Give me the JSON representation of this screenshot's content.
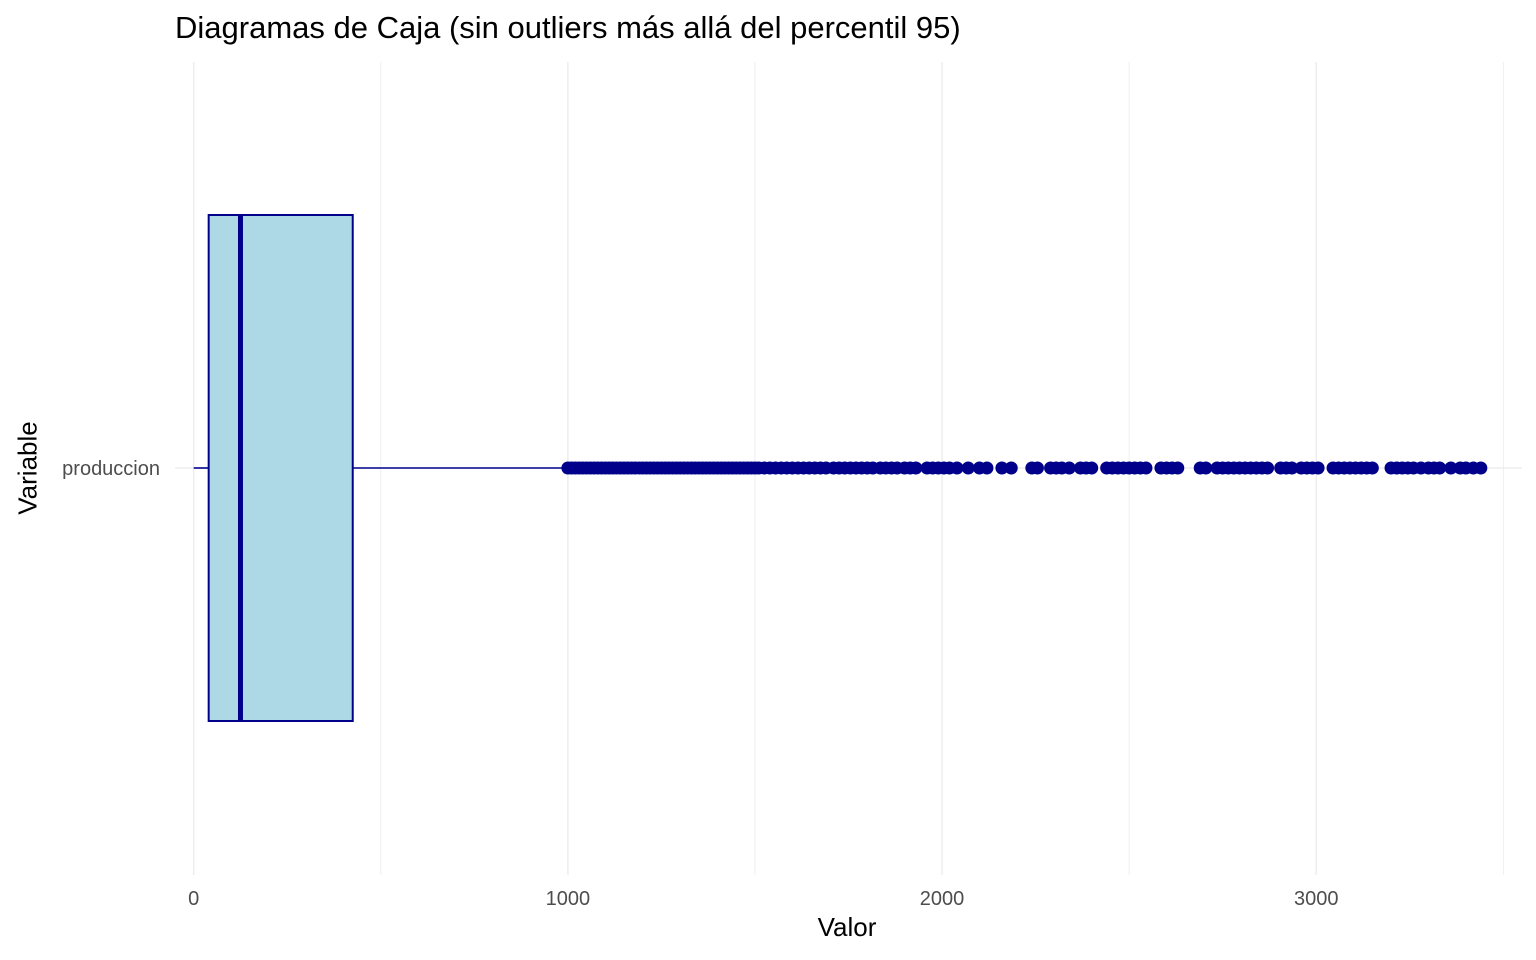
{
  "chart_data": {
    "type": "boxplot",
    "title": "Diagramas de Caja (sin outliers más allá del percentil 95)",
    "xlabel": "Valor",
    "ylabel": "Variable",
    "xlim": [
      -50,
      3550
    ],
    "x_ticks": [
      0,
      1000,
      2000,
      3000
    ],
    "x_tick_labels": [
      "0",
      "1000",
      "2000",
      "3000"
    ],
    "grid": true,
    "categories": [
      "produccion"
    ],
    "boxes": [
      {
        "category": "produccion",
        "whisker_low": 0,
        "q1": 40,
        "median": 125,
        "q3": 425,
        "whisker_high": 990,
        "outliers": [
          1000,
          1010,
          1020,
          1030,
          1040,
          1050,
          1060,
          1070,
          1080,
          1090,
          1100,
          1110,
          1120,
          1130,
          1140,
          1150,
          1160,
          1170,
          1180,
          1190,
          1200,
          1210,
          1220,
          1230,
          1240,
          1250,
          1260,
          1270,
          1280,
          1290,
          1300,
          1310,
          1320,
          1330,
          1340,
          1350,
          1360,
          1370,
          1380,
          1390,
          1400,
          1410,
          1420,
          1430,
          1440,
          1450,
          1460,
          1470,
          1480,
          1490,
          1500,
          1510,
          1525,
          1540,
          1555,
          1570,
          1585,
          1600,
          1615,
          1630,
          1645,
          1660,
          1675,
          1690,
          1710,
          1725,
          1740,
          1755,
          1770,
          1785,
          1800,
          1815,
          1835,
          1850,
          1865,
          1880,
          1900,
          1915,
          1930,
          1960,
          1975,
          1990,
          2005,
          2020,
          2040,
          2070,
          2100,
          2120,
          2160,
          2185,
          2240,
          2255,
          2290,
          2305,
          2320,
          2340,
          2370,
          2385,
          2400,
          2440,
          2455,
          2470,
          2485,
          2500,
          2515,
          2530,
          2545,
          2585,
          2600,
          2615,
          2630,
          2690,
          2705,
          2735,
          2750,
          2765,
          2780,
          2795,
          2810,
          2825,
          2840,
          2855,
          2870,
          2905,
          2920,
          2935,
          2960,
          2975,
          2990,
          3005,
          3045,
          3060,
          3075,
          3090,
          3105,
          3120,
          3135,
          3150,
          3200,
          3215,
          3230,
          3245,
          3260,
          3280,
          3300,
          3315,
          3330,
          3360,
          3385,
          3400,
          3420,
          3440
        ]
      }
    ],
    "colors": {
      "box_fill": "#add8e6",
      "box_stroke": "#00008b",
      "outlier": "#00008b",
      "grid": "#ebebeb",
      "tick_text": "#4d4d4d"
    }
  }
}
